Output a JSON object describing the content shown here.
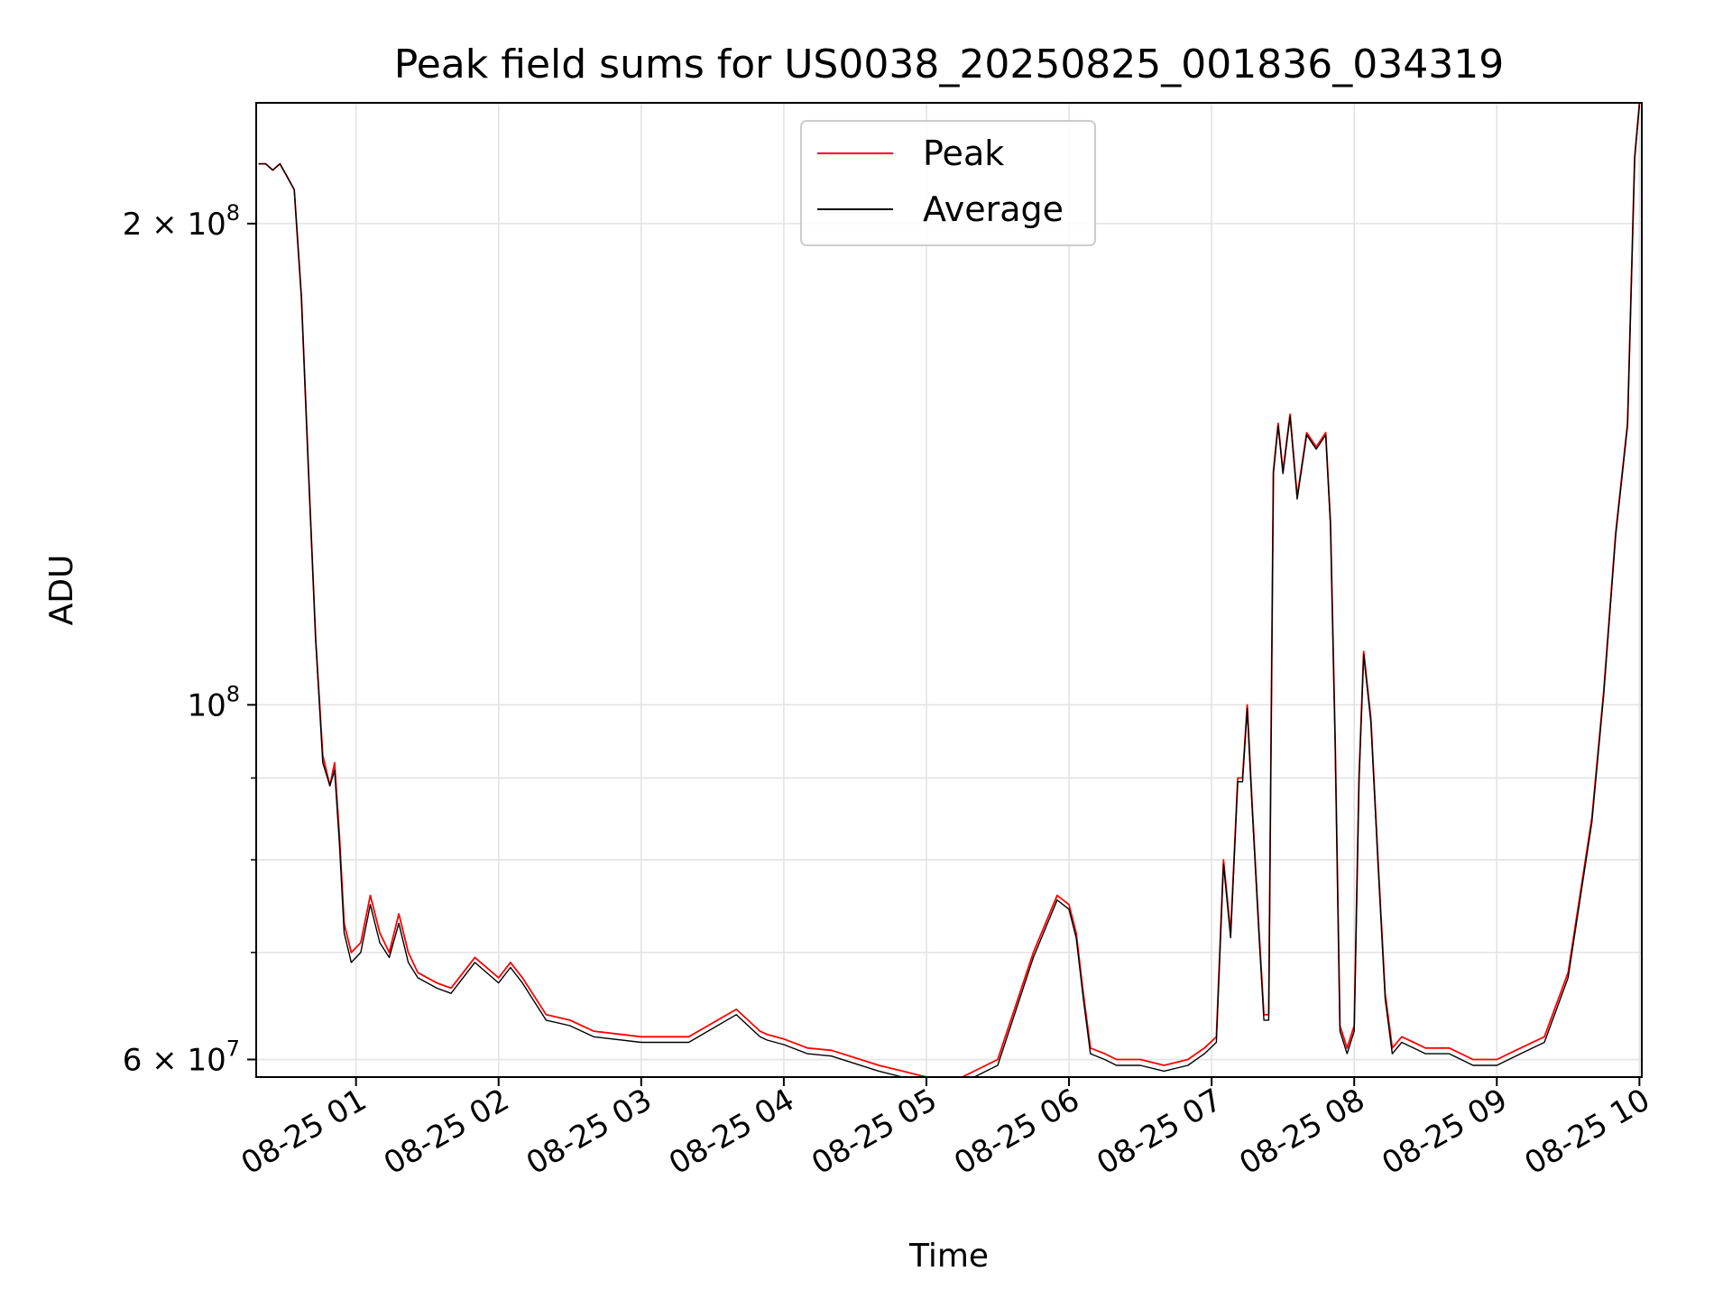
{
  "chart_data": {
    "type": "line",
    "title": "Peak field sums for US0038_20250825_001836_034319",
    "xlabel": "Time",
    "ylabel": "ADU",
    "yscale": "log",
    "ylim": [
      58500000,
      238000000
    ],
    "xlim": [
      "08-25 00:18:00",
      "08-25 10:01:00"
    ],
    "grid": true,
    "legend_position": "top-center",
    "colors": {
      "Peak": "#ff0000",
      "Average": "#000000",
      "grid": "#e3e3e3"
    },
    "x_ticks": [
      "08-25 01",
      "08-25 02",
      "08-25 03",
      "08-25 04",
      "08-25 05",
      "08-25 06",
      "08-25 07",
      "08-25 08",
      "08-25 09",
      "08-25 10"
    ],
    "y_ticks": [
      {
        "value": 60000000,
        "mantissa": "6",
        "exp": "7"
      },
      {
        "value": 100000000,
        "mantissa": "",
        "exp": "8"
      },
      {
        "value": 200000000,
        "mantissa": "2",
        "exp": "8"
      }
    ],
    "y_minor_ticks": [
      70000000,
      80000000,
      90000000
    ],
    "x": [
      "00:19",
      "00:22",
      "00:25",
      "00:28",
      "00:31",
      "00:34",
      "00:37",
      "00:40",
      "00:43",
      "00:46",
      "00:49",
      "00:51",
      "00:53",
      "00:55",
      "00:58",
      "01:02",
      "01:06",
      "01:10",
      "01:14",
      "01:18",
      "01:22",
      "01:26",
      "01:30",
      "01:34",
      "01:40",
      "01:50",
      "02:00",
      "02:05",
      "02:10",
      "02:20",
      "02:30",
      "02:40",
      "03:00",
      "03:20",
      "03:40",
      "03:50",
      "03:53",
      "04:00",
      "04:10",
      "04:20",
      "04:40",
      "04:50",
      "05:00",
      "05:15",
      "05:30",
      "05:45",
      "05:55",
      "06:00",
      "06:03",
      "06:06",
      "06:09",
      "06:15",
      "06:20",
      "06:30",
      "06:40",
      "06:50",
      "06:57",
      "07:02",
      "07:05",
      "07:08",
      "07:11",
      "07:13",
      "07:15",
      "07:17",
      "07:20",
      "07:22",
      "07:24",
      "07:26",
      "07:28",
      "07:30",
      "07:33",
      "07:36",
      "07:40",
      "07:44",
      "07:48",
      "07:50",
      "07:52",
      "07:54",
      "07:57",
      "08:00",
      "08:02",
      "08:04",
      "08:07",
      "08:10",
      "08:13",
      "08:16",
      "08:20",
      "08:25",
      "08:30",
      "08:40",
      "08:50",
      "09:00",
      "09:10",
      "09:20",
      "09:30",
      "09:40",
      "09:45",
      "09:50",
      "09:55",
      "09:58",
      "10:00"
    ],
    "series": [
      {
        "name": "Peak",
        "values": [
          218000000,
          218000000,
          216000000,
          218000000,
          214000000,
          210000000,
          180000000,
          140000000,
          110000000,
          93000000,
          89000000,
          92000000,
          83000000,
          73000000,
          70000000,
          71000000,
          76000000,
          72000000,
          70000000,
          74000000,
          70000000,
          68000000,
          67500000,
          67000000,
          66500000,
          69500000,
          67500000,
          69000000,
          67500000,
          64000000,
          63500000,
          62500000,
          62000000,
          62000000,
          64500000,
          62500000,
          62200000,
          61800000,
          61000000,
          60800000,
          59500000,
          59000000,
          58500000,
          58500000,
          60000000,
          70000000,
          76000000,
          75000000,
          72000000,
          66000000,
          61000000,
          60500000,
          60000000,
          60000000,
          59500000,
          60000000,
          61000000,
          62000000,
          80000000,
          72000000,
          90000000,
          90000000,
          100000000,
          87000000,
          72000000,
          64000000,
          64000000,
          140000000,
          150000000,
          140000000,
          152000000,
          135000000,
          148000000,
          145000000,
          148000000,
          130000000,
          95000000,
          63000000,
          61000000,
          63000000,
          90000000,
          108000000,
          98000000,
          80000000,
          66000000,
          61000000,
          62000000,
          61500000,
          61000000,
          61000000,
          60000000,
          60000000,
          61000000,
          62000000,
          68000000,
          85000000,
          102000000,
          128000000,
          150000000,
          220000000,
          238000000
        ]
      },
      {
        "name": "Average",
        "values": [
          218000000,
          218000000,
          216000000,
          218000000,
          214000000,
          210000000,
          180000000,
          140000000,
          110000000,
          92000000,
          89000000,
          91000000,
          82000000,
          72000000,
          69000000,
          70000000,
          75000000,
          71000000,
          69500000,
          73000000,
          69000000,
          67500000,
          67000000,
          66500000,
          66000000,
          69000000,
          67000000,
          68500000,
          67000000,
          63500000,
          63000000,
          62000000,
          61500000,
          61500000,
          64000000,
          62000000,
          61700000,
          61300000,
          60500000,
          60300000,
          59000000,
          58500000,
          58000000,
          58000000,
          59500000,
          69500000,
          75500000,
          74500000,
          71500000,
          65500000,
          60500000,
          60000000,
          59500000,
          59500000,
          59000000,
          59500000,
          60500000,
          61500000,
          79500000,
          71500000,
          89500000,
          89500000,
          99500000,
          86500000,
          71500000,
          63500000,
          63500000,
          139500000,
          149500000,
          139500000,
          151500000,
          134500000,
          147500000,
          144500000,
          147500000,
          129500000,
          94500000,
          62500000,
          60500000,
          62500000,
          89500000,
          107500000,
          97500000,
          79500000,
          65500000,
          60500000,
          61500000,
          61000000,
          60500000,
          60500000,
          59500000,
          59500000,
          60500000,
          61500000,
          67500000,
          84500000,
          101500000,
          127500000,
          149500000,
          219500000,
          237500000
        ]
      }
    ]
  }
}
